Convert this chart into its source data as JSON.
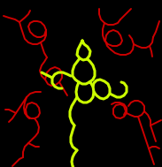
{
  "bg_color": "#000000",
  "yellow_color": "#CCFF00",
  "red_color": "#CC0000",
  "linewidth_yellow": 2.2,
  "linewidth_red": 1.4,
  "yellow_segments": [
    [
      [
        93,
        46
      ],
      [
        90,
        52
      ],
      [
        88,
        56
      ],
      [
        87,
        62
      ],
      [
        90,
        66
      ],
      [
        94,
        68
      ],
      [
        98,
        67
      ],
      [
        101,
        63
      ],
      [
        102,
        58
      ],
      [
        99,
        53
      ],
      [
        95,
        50
      ],
      [
        93,
        46
      ]
    ],
    [
      [
        90,
        66
      ],
      [
        87,
        70
      ],
      [
        84,
        74
      ],
      [
        82,
        80
      ],
      [
        82,
        86
      ],
      [
        85,
        90
      ],
      [
        89,
        93
      ]
    ],
    [
      [
        89,
        93
      ],
      [
        93,
        95
      ],
      [
        97,
        95
      ],
      [
        101,
        93
      ]
    ],
    [
      [
        101,
        93
      ],
      [
        105,
        90
      ],
      [
        107,
        86
      ],
      [
        107,
        80
      ],
      [
        105,
        74
      ],
      [
        102,
        70
      ],
      [
        99,
        67
      ],
      [
        98,
        67
      ]
    ],
    [
      [
        89,
        93
      ],
      [
        87,
        98
      ],
      [
        86,
        104
      ],
      [
        87,
        110
      ],
      [
        90,
        114
      ],
      [
        94,
        116
      ],
      [
        98,
        116
      ],
      [
        102,
        114
      ],
      [
        105,
        110
      ],
      [
        106,
        104
      ],
      [
        105,
        98
      ],
      [
        102,
        93
      ],
      [
        101,
        93
      ]
    ],
    [
      [
        87,
        110
      ],
      [
        84,
        115
      ],
      [
        81,
        120
      ],
      [
        79,
        126
      ],
      [
        79,
        132
      ],
      [
        81,
        138
      ],
      [
        84,
        142
      ]
    ],
    [
      [
        84,
        142
      ],
      [
        82,
        148
      ],
      [
        80,
        155
      ],
      [
        80,
        161
      ],
      [
        82,
        166
      ],
      [
        87,
        170
      ]
    ],
    [
      [
        87,
        170
      ],
      [
        84,
        174
      ],
      [
        82,
        178
      ],
      [
        81,
        183
      ],
      [
        82,
        188
      ]
    ],
    [
      [
        82,
        188
      ],
      [
        82,
        192
      ],
      [
        84,
        196
      ],
      [
        84,
        200
      ]
    ],
    [
      [
        106,
        104
      ],
      [
        109,
        108
      ],
      [
        113,
        111
      ],
      [
        117,
        112
      ],
      [
        121,
        110
      ],
      [
        124,
        106
      ],
      [
        124,
        100
      ],
      [
        122,
        95
      ],
      [
        118,
        92
      ],
      [
        113,
        90
      ],
      [
        109,
        91
      ],
      [
        106,
        94
      ],
      [
        105,
        98
      ]
    ],
    [
      [
        124,
        106
      ],
      [
        128,
        108
      ],
      [
        132,
        110
      ],
      [
        136,
        110
      ],
      [
        140,
        108
      ],
      [
        143,
        104
      ],
      [
        143,
        98
      ],
      [
        140,
        94
      ],
      [
        137,
        93
      ]
    ],
    [
      [
        80,
        86
      ],
      [
        76,
        84
      ],
      [
        71,
        82
      ],
      [
        66,
        82
      ],
      [
        62,
        84
      ],
      [
        59,
        88
      ],
      [
        59,
        94
      ],
      [
        62,
        98
      ],
      [
        66,
        100
      ],
      [
        70,
        100
      ]
    ],
    [
      [
        59,
        88
      ],
      [
        55,
        86
      ],
      [
        51,
        84
      ],
      [
        47,
        82
      ]
    ]
  ],
  "red_segments": [
    [
      [
        4,
        18
      ],
      [
        10,
        20
      ],
      [
        17,
        22
      ],
      [
        22,
        25
      ]
    ],
    [
      [
        22,
        25
      ],
      [
        28,
        20
      ],
      [
        32,
        16
      ],
      [
        34,
        12
      ]
    ],
    [
      [
        22,
        25
      ],
      [
        24,
        32
      ],
      [
        26,
        38
      ],
      [
        28,
        44
      ],
      [
        32,
        48
      ],
      [
        37,
        50
      ],
      [
        42,
        50
      ],
      [
        46,
        48
      ]
    ],
    [
      [
        46,
        48
      ],
      [
        50,
        45
      ],
      [
        52,
        40
      ],
      [
        52,
        34
      ],
      [
        50,
        29
      ],
      [
        46,
        25
      ],
      [
        42,
        24
      ],
      [
        38,
        24
      ],
      [
        34,
        26
      ],
      [
        32,
        30
      ],
      [
        34,
        36
      ],
      [
        38,
        40
      ],
      [
        42,
        42
      ],
      [
        46,
        42
      ],
      [
        50,
        40
      ],
      [
        52,
        34
      ]
    ],
    [
      [
        46,
        48
      ],
      [
        48,
        54
      ],
      [
        50,
        60
      ],
      [
        53,
        65
      ]
    ],
    [
      [
        53,
        65
      ],
      [
        50,
        70
      ],
      [
        47,
        74
      ],
      [
        45,
        80
      ],
      [
        47,
        86
      ],
      [
        51,
        90
      ]
    ],
    [
      [
        51,
        90
      ],
      [
        53,
        82
      ],
      [
        57,
        78
      ],
      [
        62,
        76
      ],
      [
        67,
        78
      ],
      [
        70,
        82
      ],
      [
        70,
        88
      ],
      [
        67,
        93
      ],
      [
        63,
        96
      ],
      [
        58,
        97
      ],
      [
        54,
        95
      ],
      [
        51,
        90
      ]
    ],
    [
      [
        67,
        93
      ],
      [
        70,
        98
      ],
      [
        73,
        103
      ],
      [
        76,
        108
      ]
    ],
    [
      [
        118,
        26
      ],
      [
        114,
        22
      ],
      [
        112,
        16
      ],
      [
        112,
        10
      ]
    ],
    [
      [
        118,
        26
      ],
      [
        122,
        28
      ],
      [
        128,
        28
      ],
      [
        133,
        26
      ],
      [
        136,
        22
      ]
    ],
    [
      [
        136,
        22
      ],
      [
        140,
        18
      ],
      [
        144,
        14
      ],
      [
        148,
        10
      ]
    ],
    [
      [
        118,
        26
      ],
      [
        116,
        33
      ],
      [
        116,
        40
      ],
      [
        118,
        46
      ],
      [
        122,
        50
      ],
      [
        127,
        52
      ],
      [
        132,
        52
      ],
      [
        136,
        50
      ],
      [
        138,
        46
      ],
      [
        136,
        40
      ],
      [
        133,
        36
      ],
      [
        128,
        34
      ],
      [
        123,
        36
      ],
      [
        120,
        40
      ],
      [
        119,
        46
      ],
      [
        121,
        52
      ],
      [
        125,
        56
      ]
    ],
    [
      [
        125,
        56
      ],
      [
        130,
        60
      ],
      [
        136,
        62
      ],
      [
        142,
        62
      ],
      [
        147,
        60
      ],
      [
        150,
        56
      ],
      [
        151,
        50
      ],
      [
        149,
        44
      ],
      [
        146,
        40
      ]
    ],
    [
      [
        151,
        50
      ],
      [
        155,
        52
      ],
      [
        160,
        54
      ],
      [
        165,
        54
      ],
      [
        169,
        52
      ],
      [
        172,
        48
      ],
      [
        173,
        42
      ]
    ],
    [
      [
        173,
        42
      ],
      [
        176,
        36
      ],
      [
        178,
        30
      ],
      [
        180,
        24
      ]
    ],
    [
      [
        169,
        52
      ],
      [
        171,
        58
      ],
      [
        172,
        64
      ]
    ],
    [
      [
        30,
        110
      ],
      [
        34,
        106
      ],
      [
        40,
        104
      ],
      [
        46,
        104
      ]
    ],
    [
      [
        30,
        110
      ],
      [
        26,
        116
      ],
      [
        22,
        122
      ],
      [
        18,
        128
      ],
      [
        14,
        134
      ],
      [
        10,
        138
      ]
    ],
    [
      [
        18,
        128
      ],
      [
        14,
        126
      ],
      [
        10,
        124
      ],
      [
        6,
        124
      ]
    ],
    [
      [
        30,
        110
      ],
      [
        28,
        116
      ],
      [
        27,
        122
      ],
      [
        28,
        128
      ],
      [
        31,
        132
      ],
      [
        35,
        134
      ],
      [
        39,
        134
      ],
      [
        43,
        132
      ],
      [
        45,
        128
      ],
      [
        44,
        122
      ],
      [
        41,
        118
      ],
      [
        36,
        116
      ],
      [
        31,
        118
      ],
      [
        29,
        124
      ],
      [
        30,
        130
      ],
      [
        33,
        134
      ]
    ],
    [
      [
        39,
        134
      ],
      [
        42,
        138
      ],
      [
        44,
        144
      ],
      [
        43,
        150
      ],
      [
        40,
        154
      ],
      [
        36,
        158
      ],
      [
        32,
        162
      ]
    ],
    [
      [
        32,
        162
      ],
      [
        28,
        166
      ],
      [
        26,
        172
      ],
      [
        26,
        178
      ]
    ],
    [
      [
        32,
        162
      ],
      [
        36,
        164
      ],
      [
        40,
        166
      ],
      [
        44,
        166
      ]
    ],
    [
      [
        26,
        178
      ],
      [
        22,
        180
      ],
      [
        18,
        184
      ],
      [
        14,
        188
      ]
    ],
    [
      [
        126,
        118
      ],
      [
        130,
        116
      ],
      [
        135,
        116
      ],
      [
        140,
        118
      ],
      [
        143,
        122
      ],
      [
        143,
        128
      ],
      [
        140,
        132
      ],
      [
        136,
        134
      ],
      [
        131,
        133
      ],
      [
        128,
        129
      ],
      [
        128,
        123
      ],
      [
        131,
        119
      ],
      [
        136,
        118
      ],
      [
        140,
        120
      ],
      [
        142,
        126
      ],
      [
        140,
        130
      ]
    ],
    [
      [
        143,
        128
      ],
      [
        147,
        130
      ],
      [
        152,
        132
      ],
      [
        156,
        132
      ],
      [
        160,
        130
      ],
      [
        163,
        126
      ],
      [
        163,
        120
      ],
      [
        160,
        116
      ],
      [
        156,
        114
      ],
      [
        152,
        114
      ],
      [
        148,
        116
      ],
      [
        145,
        120
      ]
    ],
    [
      [
        163,
        126
      ],
      [
        167,
        130
      ],
      [
        170,
        136
      ],
      [
        170,
        142
      ]
    ],
    [
      [
        170,
        142
      ],
      [
        172,
        148
      ],
      [
        174,
        154
      ],
      [
        176,
        160
      ]
    ],
    [
      [
        170,
        142
      ],
      [
        174,
        140
      ],
      [
        178,
        138
      ],
      [
        182,
        136
      ]
    ],
    [
      [
        156,
        132
      ],
      [
        158,
        138
      ],
      [
        160,
        144
      ],
      [
        162,
        150
      ],
      [
        164,
        156
      ],
      [
        166,
        162
      ],
      [
        168,
        168
      ]
    ],
    [
      [
        168,
        168
      ],
      [
        170,
        174
      ],
      [
        172,
        180
      ],
      [
        174,
        186
      ]
    ],
    [
      [
        168,
        168
      ],
      [
        172,
        166
      ],
      [
        176,
        166
      ],
      [
        180,
        168
      ]
    ]
  ]
}
